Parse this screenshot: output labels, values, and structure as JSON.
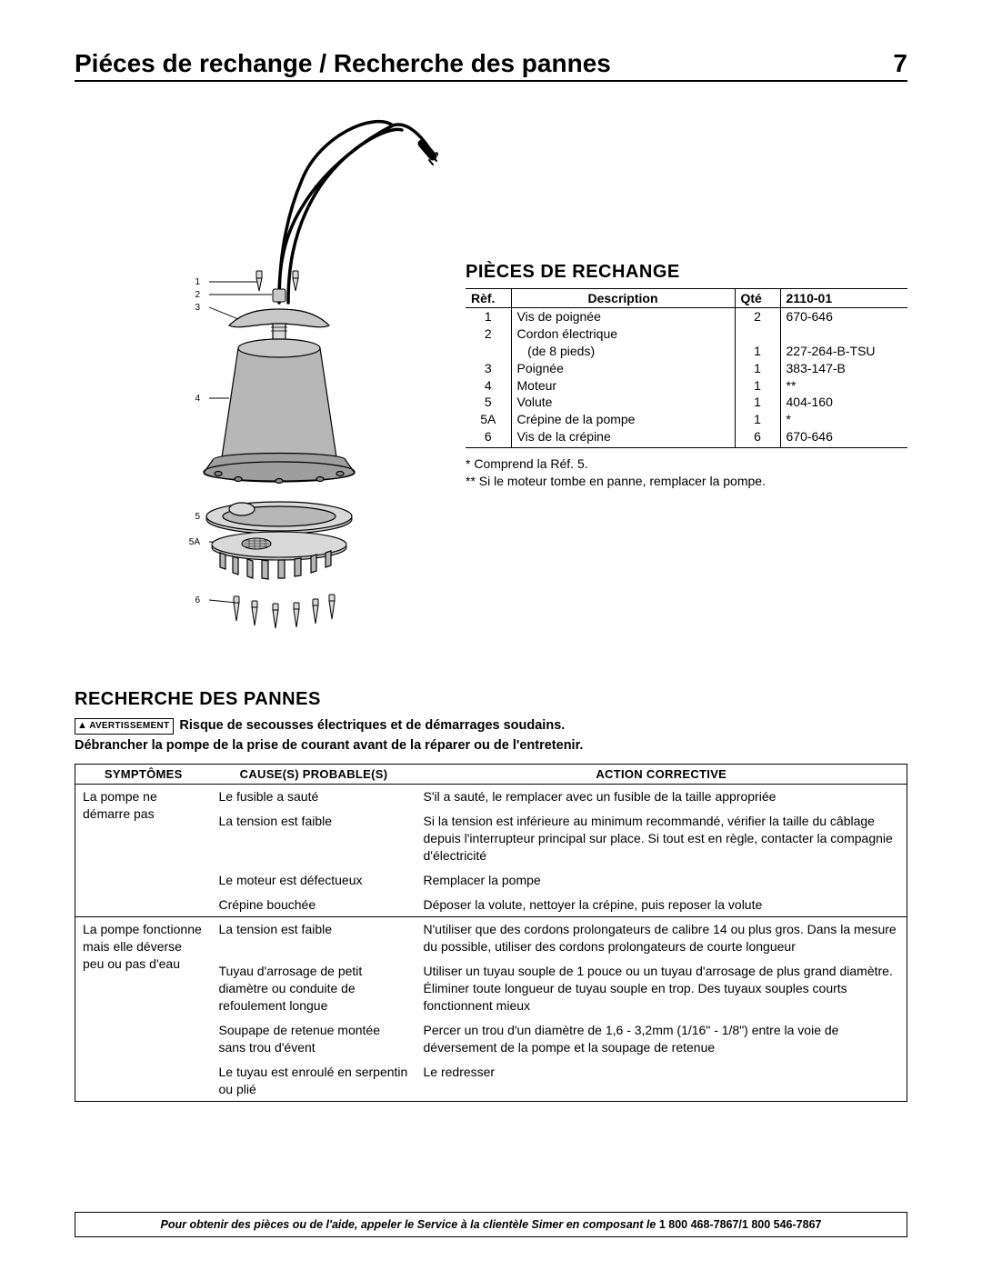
{
  "header": {
    "title": "Piéces de rechange / Recherche des pannes",
    "page_number": "7"
  },
  "diagram": {
    "callouts": [
      "1",
      "2",
      "3",
      "4",
      "5",
      "5A",
      "6"
    ],
    "colors": {
      "stroke": "#000000",
      "fill_body": "#b7b7b7",
      "fill_light": "#d9d9d9",
      "fill_mid": "#c8c8c8",
      "fill_dark": "#9e9e9e",
      "cord": "#000000"
    }
  },
  "parts": {
    "heading": "PIÈCES DE RECHANGE",
    "columns": {
      "ref": "Rèf.",
      "desc": "Description",
      "qty": "Qté",
      "model": "2110-01"
    },
    "rows": [
      {
        "ref": "1",
        "desc": "Vis de poignée",
        "qty": "2",
        "part": "670-646"
      },
      {
        "ref": "2",
        "desc": "Cordon électrique\n   (de 8 pieds)",
        "qty": "1",
        "part": "227-264-B-TSU"
      },
      {
        "ref": "3",
        "desc": "Poignée",
        "qty": "1",
        "part": "383-147-B"
      },
      {
        "ref": "4",
        "desc": "Moteur",
        "qty": "1",
        "part": "**"
      },
      {
        "ref": "5",
        "desc": "Volute",
        "qty": "1",
        "part": "404-160"
      },
      {
        "ref": "5A",
        "desc": "Crépine de la pompe",
        "qty": "1",
        "part": "*"
      },
      {
        "ref": "6",
        "desc": "Vis de la crépine",
        "qty": "6",
        "part": "670-646"
      }
    ],
    "note1": "* Comprend la Réf. 5.",
    "note2": "** Si le moteur tombe en panne, remplacer la pompe."
  },
  "trouble": {
    "heading": "RECHERCHE DES PANNES",
    "warn_badge": "AVERTISSEMENT",
    "warn_text": "Risque de secousses électriques et de démarrages soudains.",
    "warn_sub": "Débrancher la pompe de la prise de courant avant de la réparer ou de l'entretenir.",
    "columns": {
      "sym": "SYMPTÔMES",
      "cause": "CAUSE(S) PROBABLE(S)",
      "action": "ACTION CORRECTIVE"
    },
    "groups": [
      {
        "symptom": "La pompe ne démarre pas",
        "rows": [
          {
            "cause": "Le fusible a sauté",
            "action": "S'il a sauté, le remplacer avec un fusible de la taille appropriée"
          },
          {
            "cause": "La tension est faible",
            "action": "Si la tension est inférieure au minimum recommandé, vérifier la taille du câblage depuis l'interrupteur principal sur place. Si tout est en règle, contacter la compagnie d'électricité"
          },
          {
            "cause": "Le moteur est défectueux",
            "action": "Remplacer la pompe"
          },
          {
            "cause": "Crépine bouchée",
            "action": "Déposer la volute, nettoyer la crépine, puis reposer la volute"
          }
        ]
      },
      {
        "symptom": "La pompe fonctionne mais elle déverse peu ou pas d'eau",
        "rows": [
          {
            "cause": "La tension est faible",
            "action": "N'utiliser que des cordons prolongateurs de calibre 14 ou plus gros. Dans la mesure du possible, utiliser des cordons prolongateurs de courte longueur"
          },
          {
            "cause": "Tuyau d'arrosage de petit diamètre ou conduite de refoulement longue",
            "action": "Utiliser un tuyau souple de 1 pouce ou un tuyau d'arrosage de plus grand diamètre. Éliminer toute longueur de tuyau souple en trop. Des tuyaux souples courts fonctionnent mieux"
          },
          {
            "cause": "Soupape de retenue montée sans trou d'évent",
            "action": "Percer un trou d'un diamètre de 1,6 - 3,2mm (1/16\" - 1/8\") entre la voie de déversement de la pompe et la soupage de retenue"
          },
          {
            "cause": "Le tuyau est enroulé en serpentin ou plié",
            "action": "Le redresser"
          }
        ]
      }
    ]
  },
  "footer": {
    "text_prefix": "Pour obtenir des pièces ou de l'aide, appeler le Service à la clientèle Simer en composant le ",
    "phones": "1 800 468-7867/1 800 546-7867"
  }
}
